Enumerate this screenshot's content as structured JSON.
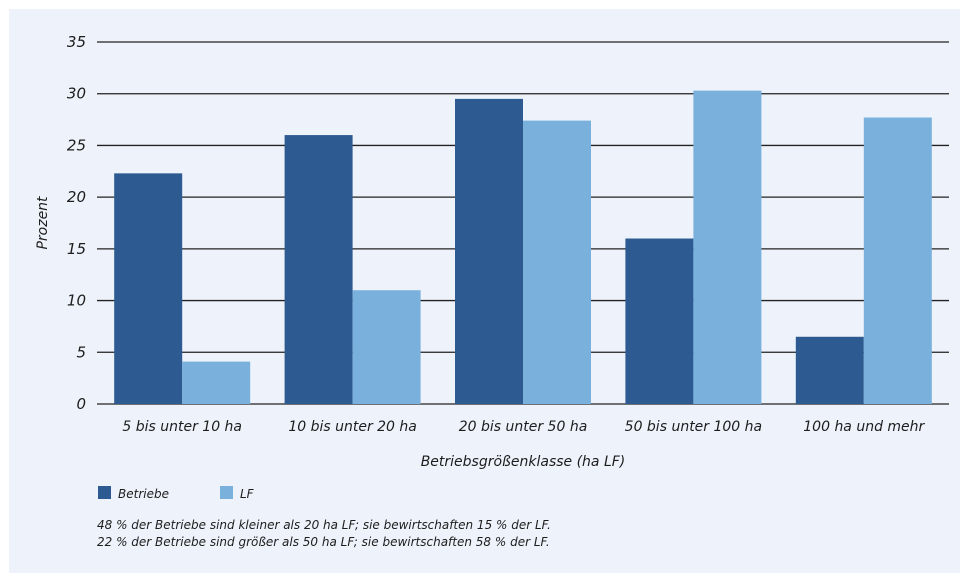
{
  "chart_data": {
    "type": "bar",
    "title": "",
    "ylabel": "Prozent",
    "xlabel": "Betriebsgrößenklasse (ha LF)",
    "ylim": [
      0,
      35
    ],
    "yticks": [
      0,
      5,
      10,
      15,
      20,
      25,
      30,
      35
    ],
    "grid": true,
    "legend_position": "bottom-left",
    "categories": [
      "5 bis unter 10 ha",
      "10 bis unter 20 ha",
      "20 bis unter 50 ha",
      "50 bis unter 100 ha",
      "100 ha und mehr"
    ],
    "series": [
      {
        "name": "Betriebe",
        "color": "#2c5a91",
        "values": [
          22.3,
          26.0,
          29.5,
          16.0,
          6.5
        ]
      },
      {
        "name": "LF",
        "color": "#7ab0dc",
        "values": [
          4.1,
          11.0,
          27.4,
          30.3,
          27.7
        ]
      }
    ],
    "notes": [
      "48 % der Betriebe sind kleiner als 20 ha LF; sie bewirtschaften 15 % der LF.",
      "22 % der Betriebe sind größer als 50 ha LF; sie bewirtschaften 58 % der LF."
    ]
  }
}
